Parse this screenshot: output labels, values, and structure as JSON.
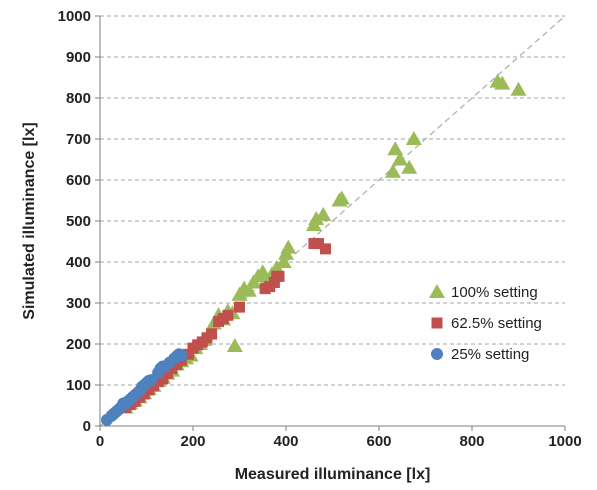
{
  "chart_data": {
    "type": "scatter",
    "title": "",
    "xlabel": "Measured illuminance [lx]",
    "ylabel": "Simulated illuminance [lx]",
    "xlim": [
      0,
      1000
    ],
    "ylim": [
      0,
      1000
    ],
    "x_ticks": [
      "0",
      "200",
      "400",
      "600",
      "800",
      "1000"
    ],
    "y_ticks": [
      "0",
      "100",
      "200",
      "300",
      "400",
      "500",
      "600",
      "700",
      "800",
      "900",
      "1000"
    ],
    "grid": "horizontal dashed",
    "legend_position": "right-center",
    "reference_line": {
      "style": "dashed",
      "color": "#b0b0b0",
      "from": [
        0,
        0
      ],
      "to": [
        1000,
        1000
      ]
    },
    "series": [
      {
        "name": "100% setting",
        "marker": "triangle",
        "color": "#9bbb59",
        "points": [
          [
            55,
            45
          ],
          [
            65,
            55
          ],
          [
            75,
            62
          ],
          [
            85,
            70
          ],
          [
            95,
            80
          ],
          [
            105,
            90
          ],
          [
            115,
            98
          ],
          [
            125,
            110
          ],
          [
            135,
            118
          ],
          [
            145,
            128
          ],
          [
            155,
            135
          ],
          [
            165,
            150
          ],
          [
            175,
            158
          ],
          [
            185,
            165
          ],
          [
            195,
            172
          ],
          [
            205,
            190
          ],
          [
            215,
            200
          ],
          [
            225,
            210
          ],
          [
            235,
            225
          ],
          [
            245,
            250
          ],
          [
            255,
            270
          ],
          [
            265,
            260
          ],
          [
            275,
            280
          ],
          [
            285,
            275
          ],
          [
            290,
            195
          ],
          [
            300,
            320
          ],
          [
            310,
            335
          ],
          [
            320,
            330
          ],
          [
            330,
            350
          ],
          [
            340,
            365
          ],
          [
            350,
            375
          ],
          [
            360,
            355
          ],
          [
            370,
            370
          ],
          [
            380,
            385
          ],
          [
            395,
            400
          ],
          [
            400,
            420
          ],
          [
            405,
            435
          ],
          [
            460,
            490
          ],
          [
            465,
            505
          ],
          [
            480,
            515
          ],
          [
            515,
            550
          ],
          [
            520,
            555
          ],
          [
            630,
            620
          ],
          [
            635,
            675
          ],
          [
            645,
            650
          ],
          [
            665,
            630
          ],
          [
            675,
            700
          ],
          [
            855,
            840
          ],
          [
            865,
            835
          ],
          [
            900,
            820
          ]
        ]
      },
      {
        "name": "62.5% setting",
        "marker": "square",
        "color": "#c0504d",
        "points": [
          [
            55,
            45
          ],
          [
            65,
            52
          ],
          [
            75,
            60
          ],
          [
            85,
            70
          ],
          [
            95,
            78
          ],
          [
            105,
            88
          ],
          [
            115,
            98
          ],
          [
            125,
            108
          ],
          [
            135,
            115
          ],
          [
            145,
            128
          ],
          [
            155,
            140
          ],
          [
            165,
            150
          ],
          [
            175,
            160
          ],
          [
            190,
            175
          ],
          [
            200,
            190
          ],
          [
            210,
            198
          ],
          [
            220,
            205
          ],
          [
            230,
            215
          ],
          [
            240,
            225
          ],
          [
            255,
            255
          ],
          [
            265,
            262
          ],
          [
            275,
            270
          ],
          [
            300,
            290
          ],
          [
            355,
            335
          ],
          [
            365,
            340
          ],
          [
            375,
            350
          ],
          [
            380,
            365
          ],
          [
            385,
            365
          ],
          [
            460,
            445
          ],
          [
            470,
            445
          ],
          [
            485,
            432
          ]
        ]
      },
      {
        "name": "25% setting",
        "marker": "circle",
        "color": "#4f81bd",
        "points": [
          [
            15,
            15
          ],
          [
            25,
            25
          ],
          [
            30,
            30
          ],
          [
            35,
            35
          ],
          [
            40,
            40
          ],
          [
            45,
            45
          ],
          [
            50,
            55
          ],
          [
            55,
            55
          ],
          [
            60,
            60
          ],
          [
            65,
            65
          ],
          [
            70,
            70
          ],
          [
            75,
            75
          ],
          [
            80,
            80
          ],
          [
            85,
            85
          ],
          [
            90,
            95
          ],
          [
            95,
            100
          ],
          [
            100,
            105
          ],
          [
            105,
            110
          ],
          [
            110,
            112
          ],
          [
            125,
            130
          ],
          [
            130,
            140
          ],
          [
            135,
            145
          ],
          [
            140,
            145
          ],
          [
            150,
            155
          ],
          [
            160,
            165
          ],
          [
            165,
            170
          ],
          [
            170,
            175
          ],
          [
            175,
            172
          ]
        ]
      }
    ]
  }
}
